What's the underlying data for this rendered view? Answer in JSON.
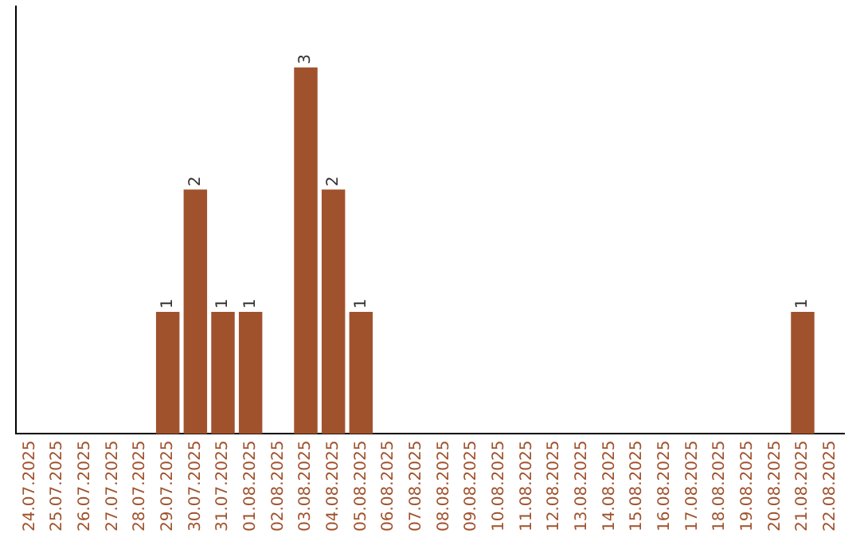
{
  "chart_data": {
    "type": "bar",
    "categories": [
      "24.07.2025",
      "25.07.2025",
      "26.07.2025",
      "27.07.2025",
      "28.07.2025",
      "29.07.2025",
      "30.07.2025",
      "31.07.2025",
      "01.08.2025",
      "02.08.2025",
      "03.08.2025",
      "04.08.2025",
      "05.08.2025",
      "06.08.2025",
      "07.08.2025",
      "08.08.2025",
      "09.08.2025",
      "10.08.2025",
      "11.08.2025",
      "12.08.2025",
      "13.08.2025",
      "14.08.2025",
      "15.08.2025",
      "16.08.2025",
      "17.08.2025",
      "18.08.2025",
      "19.08.2025",
      "20.08.2025",
      "21.08.2025",
      "22.08.2025"
    ],
    "values": [
      0,
      0,
      0,
      0,
      0,
      1,
      2,
      1,
      1,
      0,
      3,
      2,
      1,
      0,
      0,
      0,
      0,
      0,
      0,
      0,
      0,
      0,
      0,
      0,
      0,
      0,
      0,
      0,
      1,
      0
    ],
    "value_labels": [
      null,
      null,
      null,
      null,
      null,
      "1",
      "2",
      "1",
      "1",
      null,
      "3",
      "2",
      "1",
      null,
      null,
      null,
      null,
      null,
      null,
      null,
      null,
      null,
      null,
      null,
      null,
      null,
      null,
      null,
      "1",
      null
    ],
    "color": "#a0522d",
    "tick_labels": "x",
    "grid": false,
    "legend": false
  }
}
